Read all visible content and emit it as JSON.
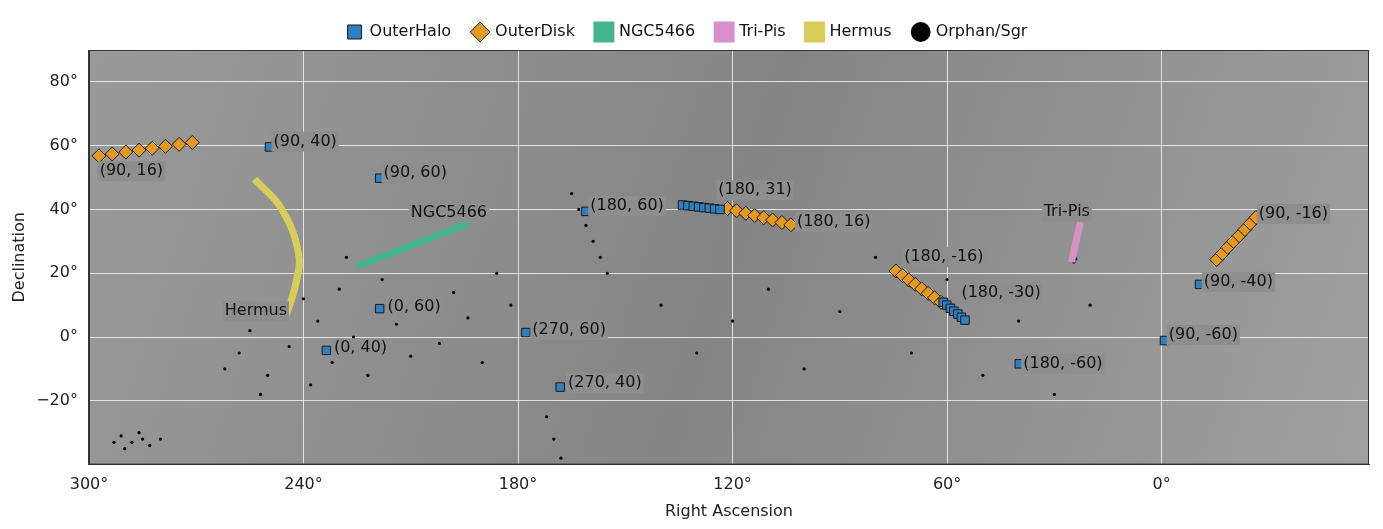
{
  "chart_data": {
    "type": "scatter",
    "x_label": "Right Ascension",
    "y_label": "Declination",
    "xlim": [
      300,
      -58
    ],
    "ylim": [
      -40,
      90
    ],
    "xticks": [
      {
        "value": 300,
        "label": "300°"
      },
      {
        "value": 240,
        "label": "240°"
      },
      {
        "value": 180,
        "label": "180°"
      },
      {
        "value": 120,
        "label": "120°"
      },
      {
        "value": 60,
        "label": "60°"
      },
      {
        "value": 0,
        "label": "0°"
      }
    ],
    "yticks": [
      {
        "value": -20,
        "label": "−20°"
      },
      {
        "value": 0,
        "label": "0°"
      },
      {
        "value": 20,
        "label": "20°"
      },
      {
        "value": 40,
        "label": "40°"
      },
      {
        "value": 60,
        "label": "60°"
      },
      {
        "value": 80,
        "label": "80°"
      }
    ],
    "grid": true,
    "legend": "top",
    "series": [
      {
        "name": "OuterHalo",
        "type": "scatter",
        "marker": "square",
        "color": "#2f7fc1",
        "x": [
          249.5,
          218.7,
          161,
          134,
          132.5,
          131,
          129.5,
          128,
          126.5,
          125,
          123.5,
          218.7,
          233.6,
          177.8,
          168.2,
          61.1,
          60.1,
          59.1,
          58.1,
          57.0,
          56.0,
          55.0,
          39.8,
          -0.8,
          -10.6
        ],
        "values": [
          59.6,
          49.8,
          39.4,
          41.4,
          41.2,
          41.0,
          40.8,
          40.6,
          40.4,
          40.2,
          40.0,
          8.9,
          -4.2,
          1.4,
          -15.7,
          10.9,
          10.0,
          9.0,
          8.1,
          7.2,
          6.2,
          5.3,
          -8.4,
          -1.1,
          16.5
        ]
      },
      {
        "name": "OuterDisk",
        "type": "scatter",
        "marker": "diamond",
        "color": "#e39a1e",
        "x": [
          297.2,
          293.5,
          289.7,
          286,
          282.3,
          278.6,
          274.8,
          271.1,
          121.4,
          118.9,
          116.3,
          113.8,
          111.3,
          108.8,
          106.2,
          103.7,
          74.3,
          72.5,
          70.7,
          68.9,
          67.1,
          65.3,
          63.5,
          61.7,
          -15.4,
          -17.0,
          -18.5,
          -20.1,
          -21.7,
          -23.3,
          -24.8,
          -26.4
        ],
        "values": [
          56.8,
          57.4,
          58.0,
          58.6,
          59.2,
          59.8,
          60.4,
          61.0,
          40.3,
          39.6,
          38.8,
          38.1,
          37.4,
          36.7,
          35.9,
          35.2,
          20.7,
          19.3,
          17.9,
          16.5,
          15.1,
          13.7,
          12.3,
          10.9,
          24.3,
          26.2,
          28.1,
          30.0,
          31.8,
          33.7,
          35.6,
          37.5
        ]
      },
      {
        "name": "NGC5466",
        "type": "line",
        "color": "#45b48e",
        "x": [
          225.1,
          193.5
        ],
        "values": [
          22.1,
          35.8
        ]
      },
      {
        "name": "Tri-Pis",
        "type": "line",
        "color": "#d890c8",
        "x": [
          25.2,
          22.7
        ],
        "values": [
          23.5,
          36.1
        ]
      },
      {
        "name": "Hermus",
        "type": "line",
        "color": "#d9cd5a",
        "x": [
          253.7,
          246.2,
          241.4,
          242.2,
          245.3
        ],
        "values": [
          49.5,
          40.3,
          26.3,
          16.5,
          5.3
        ]
      },
      {
        "name": "Orphan/Sgr",
        "type": "scatter",
        "marker": "dot",
        "color": "#000000",
        "x": [
          285,
          288,
          291,
          283,
          290,
          286,
          293,
          280,
          262,
          258,
          255,
          250,
          248,
          244,
          240,
          236,
          232,
          230,
          226,
          222,
          218,
          214,
          210,
          206,
          202,
          198,
          194,
          190,
          186,
          182,
          252,
          238,
          228,
          222,
          216,
          210,
          204,
          198,
          165,
          163,
          161,
          159,
          157,
          155,
          172,
          170,
          168,
          140,
          130,
          120,
          110,
          100,
          90,
          80,
          70,
          60,
          50,
          40,
          30,
          20,
          24.5,
          24,
          250,
          244,
          241
        ],
        "values": [
          -32,
          -33,
          -31,
          -34,
          -35,
          -30,
          -33,
          -32,
          -10,
          -5,
          2,
          -12,
          8,
          -3,
          12,
          5,
          -8,
          15,
          0,
          -12,
          18,
          4,
          -6,
          10,
          -2,
          14,
          6,
          -8,
          20,
          10,
          -18,
          -15,
          25,
          23.5,
          26,
          28.5,
          31,
          33.5,
          45,
          40,
          35,
          30,
          25,
          20,
          -25,
          -32,
          -38,
          10,
          -5,
          5,
          15,
          -10,
          8,
          25,
          -5,
          18,
          -12,
          5,
          -18,
          10,
          23.5,
          24.5,
          46,
          35,
          22
        ]
      }
    ],
    "annotations": [
      {
        "text": "(90, 16)",
        "x": 297,
        "y": 52
      },
      {
        "text": "(90, 40)",
        "x": 248.4,
        "y": 61.3
      },
      {
        "text": "(90, 60)",
        "x": 217.6,
        "y": 51.5
      },
      {
        "text": "(180, 60)",
        "x": 159.8,
        "y": 41.1
      },
      {
        "text": "(180, 31)",
        "x": 124,
        "y": 46
      },
      {
        "text": "(180, 16)",
        "x": 102,
        "y": 36
      },
      {
        "text": "(180, -16)",
        "x": 72,
        "y": 25
      },
      {
        "text": "(180, -30)",
        "x": 56,
        "y": 14
      },
      {
        "text": "(90, -16)",
        "x": -27.2,
        "y": 38.6
      },
      {
        "text": "(90, -40)",
        "x": -11.8,
        "y": 17.3
      },
      {
        "text": "(90, -60)",
        "x": -2.0,
        "y": 0.6
      },
      {
        "text": "(180, -60)",
        "x": 38.7,
        "y": -8.4
      },
      {
        "text": "(270, 40)",
        "x": 166,
        "y": -14.5
      },
      {
        "text": "(270, 60)",
        "x": 176,
        "y": 2.2
      },
      {
        "text": "(0, 60)",
        "x": 216.5,
        "y": 9.6
      },
      {
        "text": "(0, 40)",
        "x": 231.5,
        "y": -3.5
      },
      {
        "text": "NGC5466",
        "x": 210,
        "y": 39
      },
      {
        "text": "Hermus",
        "x": 262,
        "y": 8.1
      },
      {
        "text": "Tri-Pis",
        "x": 33,
        "y": 39.4
      }
    ]
  }
}
